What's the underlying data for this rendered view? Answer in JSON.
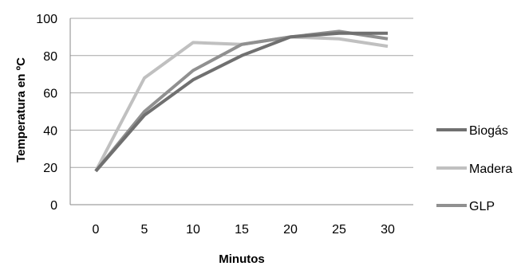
{
  "chart_data": {
    "type": "line",
    "x": [
      0,
      5,
      10,
      15,
      20,
      25,
      30
    ],
    "xlabel": "Minutos",
    "ylabel": "Temperatura en ºC",
    "ylim": [
      0,
      100
    ],
    "yticks": [
      0,
      20,
      40,
      60,
      80,
      100
    ],
    "grid": true,
    "legend_position": "right",
    "series": [
      {
        "name": "Biogás",
        "color": "#707070",
        "values": [
          18,
          48,
          67,
          80,
          90,
          92,
          92
        ]
      },
      {
        "name": "Madera",
        "color": "#c0c0c0",
        "values": [
          18,
          68,
          87,
          86,
          90,
          89,
          85
        ]
      },
      {
        "name": "GLP",
        "color": "#909090",
        "values": [
          18,
          50,
          72,
          86,
          90,
          93,
          89
        ]
      }
    ]
  }
}
